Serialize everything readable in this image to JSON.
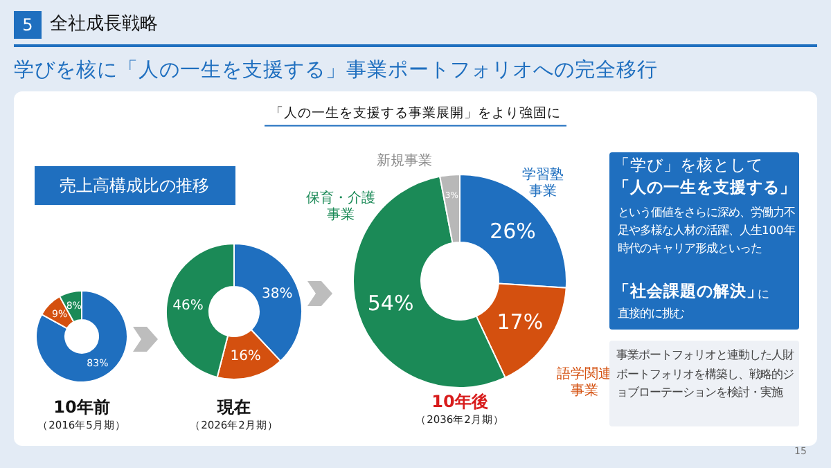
{
  "chart_data": [
    {
      "type": "other",
      "title": "学びを核に「人の一生を支援する」事業ポートフォリオへの完全移行",
      "annotations": [
        "5",
        "全社成長戦略",
        "「人の一生を支援する事業展開」をより強固に",
        "売上高構成比の推移",
        "15"
      ]
    },
    {
      "type": "donut",
      "title": "10年前",
      "subtitle": "（2016年5月期）",
      "categories": [
        null,
        null,
        null
      ],
      "values": [
        83,
        9,
        8
      ],
      "colors": [
        "#1f6fbf",
        "#d4500f",
        "#1b8a57"
      ],
      "value_labels": [
        "83%",
        "9%",
        "8%"
      ]
    },
    {
      "type": "donut",
      "title": "現在",
      "subtitle": "（2026年2月期）",
      "categories": [
        null,
        null,
        null
      ],
      "values": [
        38,
        16,
        46
      ],
      "colors": [
        "#1f6fbf",
        "#d4500f",
        "#1b8a57"
      ],
      "value_labels": [
        "38%",
        "16%",
        "46%"
      ]
    },
    {
      "type": "donut",
      "title": "10年後",
      "subtitle": "（2036年2月期）",
      "categories": [
        "学習塾事業",
        "語学関連事業",
        "保育・介護事業",
        "新規事業"
      ],
      "values": [
        26,
        17,
        54,
        3
      ],
      "colors": [
        "#1f6fbf",
        "#d4500f",
        "#1b8a57",
        "#b8b8b8"
      ],
      "value_labels": [
        "26%",
        "17%",
        "54%",
        "3%"
      ]
    },
    {
      "type": "other",
      "annotations": [
        "「学び」を核として",
        "「人の一生を支援する」",
        "という価値をさらに深め、労働力不足や多様な人材の活躍、人生100年時代のキャリア形成といった",
        "「社会課題の解決」",
        "に",
        "直接的に挑む",
        "事業ポートフォリオと連動した人財ポートフォリオを構築し、戦略的ジョブローテーションを検討・実施"
      ]
    }
  ]
}
